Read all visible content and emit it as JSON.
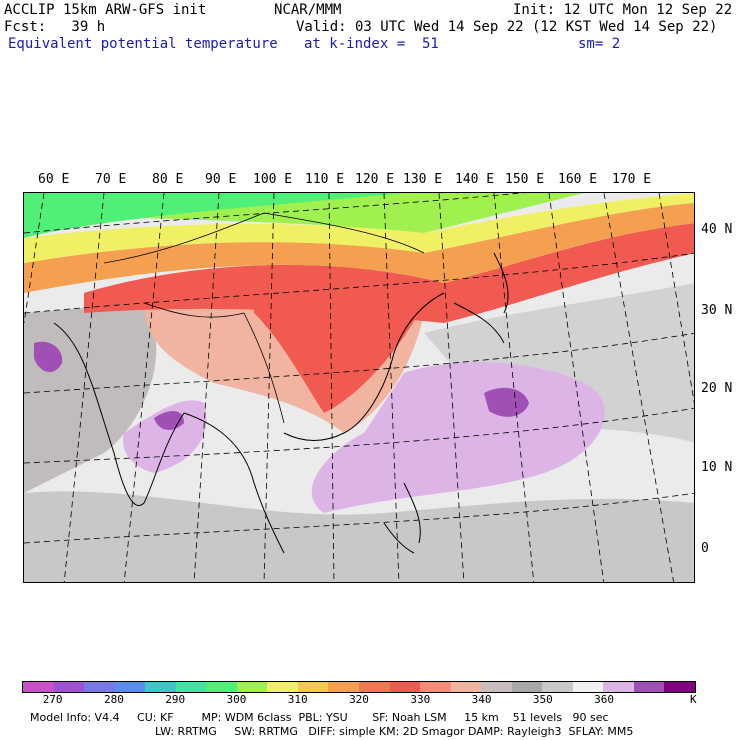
{
  "header": {
    "line1_left": "ACCLIP 15km ARW-GFS init",
    "line1_center": "NCAR/MMM",
    "line1_right": "Init: 12 UTC Mon 12 Sep 22",
    "line2_left": "Fcst:   39 h",
    "line2_right": "Valid: 03 UTC Wed 14 Sep 22 (12 KST Wed 14 Sep 22)",
    "line3_left": "Equivalent potential temperature",
    "line3_center": "at k-index =  51",
    "line3_right": "sm= 2"
  },
  "map": {
    "lon_labels": [
      "60 E",
      "70 E",
      "80 E",
      "90 E",
      "100 E",
      "110 E",
      "120 E",
      "130 E",
      "140 E",
      "150 E",
      "160 E",
      "170 E"
    ],
    "lat_labels": [
      "40 N",
      "30 N",
      "20 N",
      "10 N",
      "0"
    ]
  },
  "colorbar": {
    "colors": [
      "#c850c8",
      "#a050d2",
      "#7878e6",
      "#5a8cf0",
      "#3cc8c8",
      "#3ce6a0",
      "#50f078",
      "#a0f050",
      "#f0f064",
      "#f5c850",
      "#f5a050",
      "#f07850",
      "#f05a50",
      "#f58c78",
      "#f0b4a0",
      "#c8bebe",
      "#a8a8a8",
      "#c8c8c8",
      "#f0f0f0",
      "#dcb4e6",
      "#a050b4",
      "#820082"
    ],
    "ticks": [
      "270",
      "280",
      "290",
      "300",
      "310",
      "320",
      "330",
      "340",
      "350",
      "360"
    ],
    "unit": "K"
  },
  "footer": {
    "line1": "Model Info: V4.4     CU: KF        MP: WDM 6class  PBL: YSU       SF: Noah LSM     15 km    51 levels   90 sec",
    "line2": "LW: RRTMG     SW: RRTMG   DIFF: simple KM: 2D Smagor DAMP: Rayleigh3  SFLAY: MM5"
  }
}
